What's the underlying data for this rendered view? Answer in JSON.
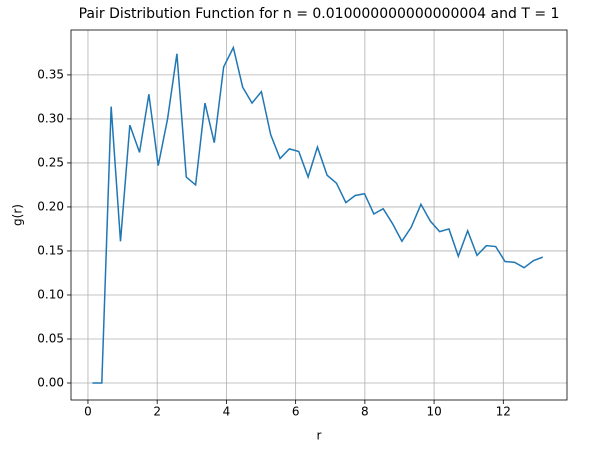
{
  "chart_data": {
    "type": "line",
    "title": "Pair Distribution Function for n = 0.010000000000000004 and T = 1",
    "xlabel": "r",
    "ylabel": "g(r)",
    "x": [
      0.13,
      0.4,
      0.67,
      0.94,
      1.21,
      1.49,
      1.76,
      2.03,
      2.3,
      2.57,
      2.84,
      3.11,
      3.38,
      3.65,
      3.92,
      4.2,
      4.47,
      4.74,
      5.01,
      5.28,
      5.55,
      5.82,
      6.09,
      6.36,
      6.63,
      6.91,
      7.18,
      7.45,
      7.72,
      7.99,
      8.26,
      8.53,
      8.8,
      9.07,
      9.34,
      9.62,
      9.89,
      10.16,
      10.43,
      10.7,
      10.97,
      11.24,
      11.51,
      11.78,
      12.05,
      12.33,
      12.6,
      12.87,
      13.14
    ],
    "series": [
      {
        "color": "#1f77b4",
        "values": [
          0.0,
          0.0,
          0.314,
          0.161,
          0.293,
          0.262,
          0.328,
          0.247,
          0.3,
          0.374,
          0.234,
          0.225,
          0.318,
          0.273,
          0.359,
          0.381,
          0.336,
          0.318,
          0.331,
          0.282,
          0.255,
          0.266,
          0.263,
          0.234,
          0.268,
          0.236,
          0.227,
          0.205,
          0.213,
          0.215,
          0.192,
          0.198,
          0.181,
          0.161,
          0.177,
          0.203,
          0.184,
          0.172,
          0.175,
          0.144,
          0.173,
          0.145,
          0.156,
          0.155,
          0.138,
          0.137,
          0.131,
          0.139,
          0.143
        ]
      }
    ],
    "xlim": [
      -0.49,
      13.84
    ],
    "xticks": [
      0,
      2,
      4,
      6,
      8,
      10,
      12
    ],
    "ylim": [
      -0.0193,
      0.401
    ],
    "yticks": [
      {
        "value": 0,
        "label": "0.00"
      },
      {
        "value": 0.05,
        "label": "0.05"
      },
      {
        "value": 0.1,
        "label": "0.10"
      },
      {
        "value": 0.15,
        "label": "0.15"
      },
      {
        "value": 0.2,
        "label": "0.20"
      },
      {
        "value": 0.25,
        "label": "0.25"
      },
      {
        "value": 0.3,
        "label": "0.30"
      },
      {
        "value": 0.35,
        "label": "0.35"
      }
    ],
    "grid": true
  }
}
